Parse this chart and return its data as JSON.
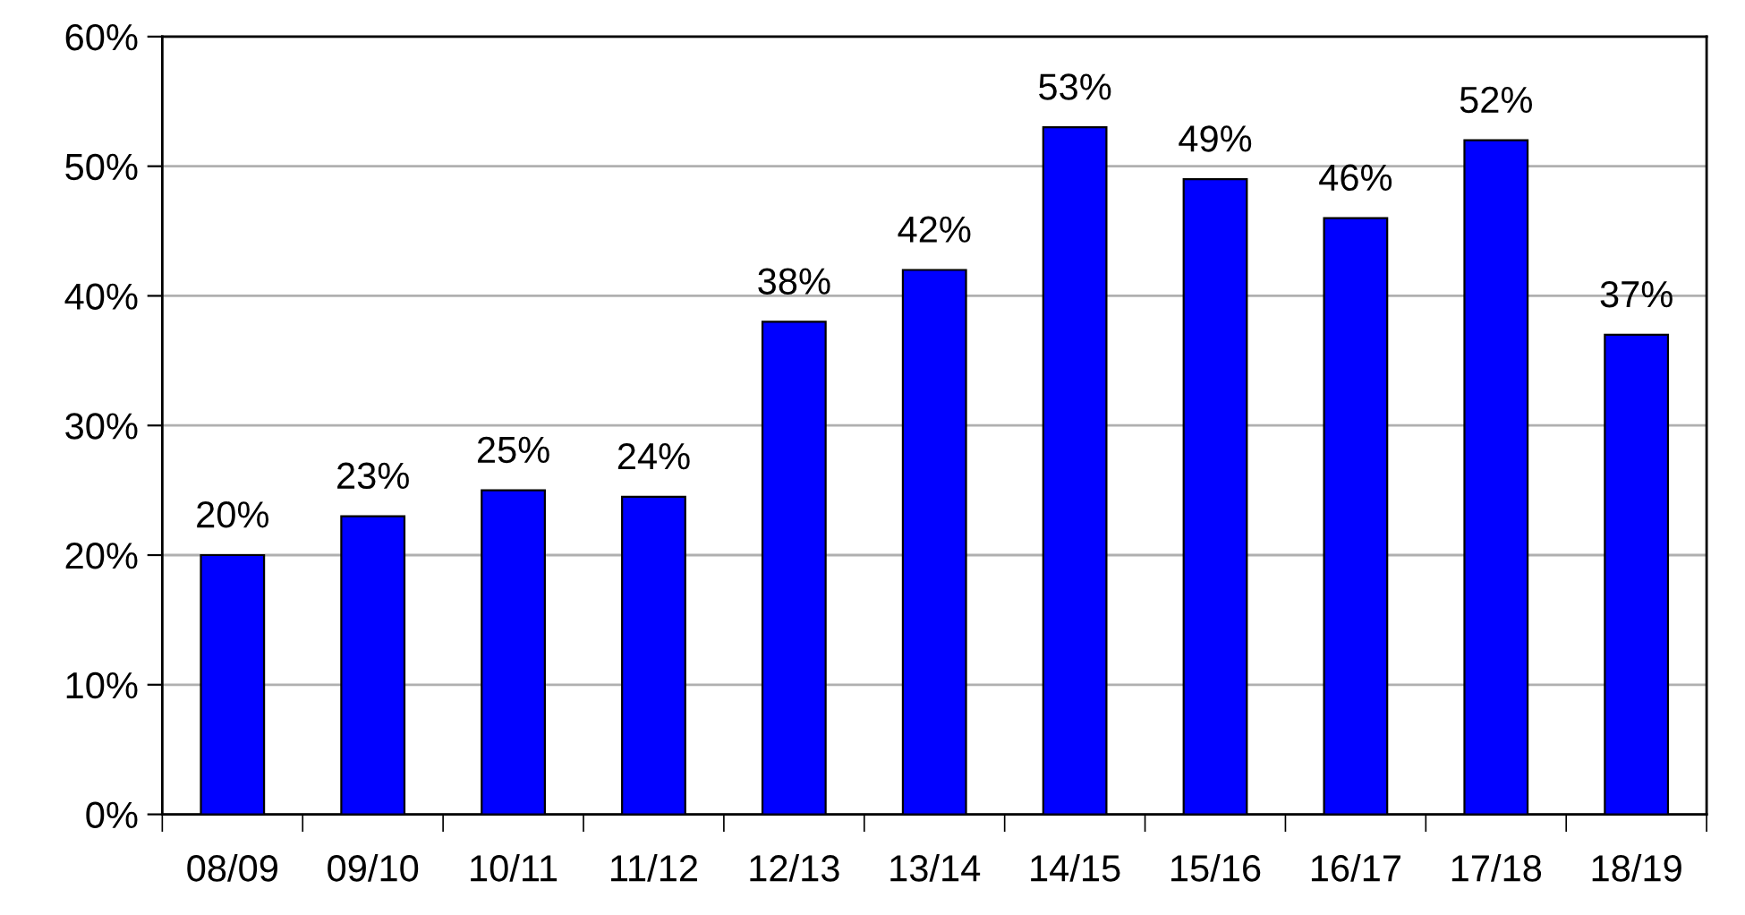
{
  "chart_data": {
    "type": "bar",
    "categories": [
      "08/09",
      "09/10",
      "10/11",
      "11/12",
      "12/13",
      "13/14",
      "14/15",
      "15/16",
      "16/17",
      "17/18",
      "18/19"
    ],
    "values": [
      20,
      23,
      25,
      24.5,
      38,
      42,
      53,
      49,
      46,
      52,
      37
    ],
    "value_labels": [
      "20%",
      "23%",
      "25%",
      "24%",
      "38%",
      "42%",
      "53%",
      "49%",
      "46%",
      "52%",
      "37%"
    ],
    "color": "#0000ff",
    "ylim": [
      0,
      60
    ],
    "yticks": [
      {
        "value": 0,
        "label": "0%"
      },
      {
        "value": 10,
        "label": "10%"
      },
      {
        "value": 20,
        "label": "20%"
      },
      {
        "value": 30,
        "label": "30%"
      },
      {
        "value": 40,
        "label": "40%"
      },
      {
        "value": 50,
        "label": "50%"
      },
      {
        "value": 60,
        "label": "60%"
      }
    ],
    "grid": "y",
    "legend": false
  }
}
